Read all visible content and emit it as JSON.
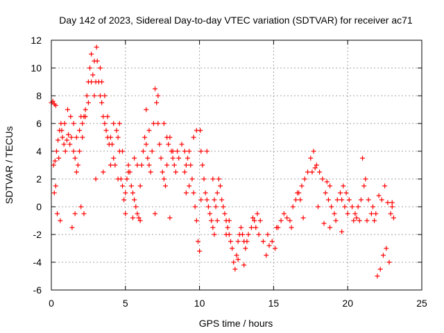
{
  "chart_data": {
    "type": "scatter",
    "title": "Day 142 of 2023, Sidereal Day-to-day VTEC variation (SDTVAR) for receiver ac71",
    "xlabel": "GPS time / hours",
    "ylabel": "SDTVAR / TECUs",
    "xlim": [
      0,
      25
    ],
    "ylim": [
      -6,
      12
    ],
    "xticks": [
      0,
      5,
      10,
      15,
      20,
      25
    ],
    "yticks": [
      -6,
      -4,
      -2,
      0,
      2,
      4,
      6,
      8,
      10,
      12
    ],
    "grid": true,
    "marker": "+",
    "series": [
      {
        "name": "SDTVAR",
        "color": "#ff0000",
        "points": [
          [
            0.0,
            7.5
          ],
          [
            0.1,
            7.6
          ],
          [
            0.2,
            7.4
          ],
          [
            0.3,
            7.3
          ],
          [
            0.15,
            3.0
          ],
          [
            0.25,
            3.3
          ],
          [
            0.35,
            4.0
          ],
          [
            0.45,
            4.8
          ],
          [
            0.55,
            5.5
          ],
          [
            0.65,
            6.0
          ],
          [
            0.75,
            5.0
          ],
          [
            0.85,
            4.5
          ],
          [
            0.95,
            4.0
          ],
          [
            1.05,
            4.8
          ],
          [
            1.15,
            5.2
          ],
          [
            1.25,
            4.5
          ],
          [
            1.35,
            5.0
          ],
          [
            1.5,
            4.0
          ],
          [
            1.6,
            3.5
          ],
          [
            1.7,
            2.5
          ],
          [
            1.8,
            3.0
          ],
          [
            1.9,
            5.5
          ],
          [
            2.0,
            6.5
          ],
          [
            2.1,
            6.0
          ],
          [
            2.2,
            6.5
          ],
          [
            2.3,
            7.0
          ],
          [
            2.4,
            8.0
          ],
          [
            2.5,
            9.0
          ],
          [
            2.6,
            10.0
          ],
          [
            2.7,
            11.0
          ],
          [
            2.8,
            9.5
          ],
          [
            2.9,
            8.0
          ],
          [
            3.0,
            9.0
          ],
          [
            3.05,
            11.5
          ],
          [
            3.1,
            10.5
          ],
          [
            3.2,
            9.0
          ],
          [
            3.3,
            8.0
          ],
          [
            3.4,
            7.5
          ],
          [
            3.5,
            6.5
          ],
          [
            3.6,
            6.0
          ],
          [
            3.7,
            5.5
          ],
          [
            3.8,
            5.0
          ],
          [
            3.9,
            4.5
          ],
          [
            4.0,
            5.0
          ],
          [
            4.1,
            4.5
          ],
          [
            4.2,
            3.5
          ],
          [
            4.3,
            3.0
          ],
          [
            4.4,
            5.5
          ],
          [
            4.5,
            5.0
          ],
          [
            4.6,
            4.0
          ],
          [
            4.7,
            2.0
          ],
          [
            4.8,
            1.5
          ],
          [
            4.9,
            0.5
          ],
          [
            5.0,
            1.0
          ],
          [
            5.1,
            2.0
          ],
          [
            5.2,
            3.0
          ],
          [
            5.3,
            2.5
          ],
          [
            5.4,
            1.5
          ],
          [
            5.5,
            1.0
          ],
          [
            5.6,
            0.5
          ],
          [
            5.7,
            0.0
          ],
          [
            5.8,
            -0.5
          ],
          [
            5.9,
            -0.8
          ],
          [
            6.0,
            1.5
          ],
          [
            6.1,
            3.0
          ],
          [
            6.2,
            4.0
          ],
          [
            6.3,
            5.0
          ],
          [
            6.4,
            4.5
          ],
          [
            6.5,
            3.5
          ],
          [
            6.6,
            3.0
          ],
          [
            6.7,
            2.5
          ],
          [
            6.8,
            4.0
          ],
          [
            6.9,
            6.0
          ],
          [
            7.0,
            8.5
          ],
          [
            7.1,
            7.5
          ],
          [
            7.2,
            6.0
          ],
          [
            7.3,
            4.5
          ],
          [
            7.4,
            3.5
          ],
          [
            7.5,
            2.5
          ],
          [
            7.6,
            2.0
          ],
          [
            7.7,
            1.5
          ],
          [
            7.8,
            3.0
          ],
          [
            7.9,
            4.5
          ],
          [
            8.0,
            5.0
          ],
          [
            8.1,
            4.0
          ],
          [
            8.2,
            3.5
          ],
          [
            8.3,
            3.0
          ],
          [
            8.4,
            2.5
          ],
          [
            8.5,
            4.0
          ],
          [
            8.6,
            3.5
          ],
          [
            9.0,
            2.5
          ],
          [
            9.1,
            3.0
          ],
          [
            9.2,
            3.5
          ],
          [
            9.3,
            4.0
          ],
          [
            9.4,
            3.0
          ],
          [
            9.5,
            2.0
          ],
          [
            9.6,
            1.0
          ],
          [
            9.7,
            0.0
          ],
          [
            9.8,
            -1.0
          ],
          [
            9.9,
            -2.5
          ],
          [
            10.0,
            -3.2
          ],
          [
            10.05,
            5.5
          ],
          [
            10.1,
            4.0
          ],
          [
            10.2,
            3.0
          ],
          [
            10.3,
            2.0
          ],
          [
            10.4,
            1.0
          ],
          [
            10.5,
            0.5
          ],
          [
            10.6,
            0.0
          ],
          [
            10.7,
            -0.5
          ],
          [
            10.8,
            -1.0
          ],
          [
            10.9,
            -1.5
          ],
          [
            11.0,
            -2.0
          ],
          [
            11.1,
            0.0
          ],
          [
            11.2,
            1.0
          ],
          [
            11.3,
            2.0
          ],
          [
            11.4,
            1.5
          ],
          [
            11.5,
            0.5
          ],
          [
            11.6,
            0.0
          ],
          [
            11.7,
            -0.5
          ],
          [
            11.8,
            -1.0
          ],
          [
            11.9,
            -1.5
          ],
          [
            12.0,
            -2.0
          ],
          [
            12.1,
            -2.5
          ],
          [
            12.2,
            -3.0
          ],
          [
            12.3,
            -4.0
          ],
          [
            12.4,
            -4.5
          ],
          [
            12.5,
            -3.5
          ],
          [
            12.6,
            -2.5
          ],
          [
            12.7,
            -2.0
          ],
          [
            12.8,
            -1.5
          ],
          [
            12.9,
            -2.0
          ],
          [
            13.0,
            -2.5
          ],
          [
            13.1,
            -3.0
          ],
          [
            13.2,
            -2.5
          ],
          [
            13.3,
            -2.0
          ],
          [
            13.5,
            -1.5
          ],
          [
            13.7,
            -1.0
          ],
          [
            13.9,
            -0.5
          ],
          [
            14.1,
            -1.0
          ],
          [
            14.3,
            -2.5
          ],
          [
            14.5,
            -3.5
          ],
          [
            14.7,
            -2.8
          ],
          [
            14.9,
            -2.5
          ],
          [
            15.1,
            -3.0
          ],
          [
            15.3,
            -1.5
          ],
          [
            15.5,
            -1.0
          ],
          [
            15.7,
            -0.5
          ],
          [
            15.9,
            -0.8
          ],
          [
            16.1,
            -1.0
          ],
          [
            16.3,
            0.0
          ],
          [
            16.5,
            0.5
          ],
          [
            16.7,
            1.0
          ],
          [
            16.9,
            1.5
          ],
          [
            17.1,
            2.0
          ],
          [
            17.3,
            2.5
          ],
          [
            17.5,
            3.5
          ],
          [
            17.7,
            4.0
          ],
          [
            17.9,
            3.0
          ],
          [
            18.1,
            2.5
          ],
          [
            18.3,
            2.0
          ],
          [
            18.5,
            1.0
          ],
          [
            18.7,
            0.5
          ],
          [
            18.9,
            0.0
          ],
          [
            19.1,
            -0.5
          ],
          [
            19.3,
            0.5
          ],
          [
            19.5,
            1.0
          ],
          [
            19.7,
            1.5
          ],
          [
            19.9,
            1.0
          ],
          [
            20.1,
            0.5
          ],
          [
            20.3,
            0.0
          ],
          [
            20.5,
            -0.5
          ],
          [
            20.7,
            0.0
          ],
          [
            20.9,
            0.5
          ],
          [
            21.0,
            3.5
          ],
          [
            21.2,
            2.0
          ],
          [
            21.4,
            0.5
          ],
          [
            21.6,
            -0.5
          ],
          [
            21.8,
            -1.0
          ],
          [
            22.0,
            -5.0
          ],
          [
            22.2,
            -4.5
          ],
          [
            22.4,
            -3.5
          ],
          [
            22.6,
            -3.0
          ],
          [
            22.8,
            -4.0
          ],
          [
            22.9,
            -0.5
          ],
          [
            23.0,
            0.0
          ],
          [
            23.1,
            -0.8
          ],
          [
            22.5,
            1.5
          ],
          [
            22.3,
            0.5
          ],
          [
            21.9,
            -0.5
          ],
          [
            21.7,
            0.0
          ],
          [
            20.8,
            -1.0
          ],
          [
            20.6,
            -0.8
          ],
          [
            19.8,
            0.0
          ],
          [
            19.6,
            0.5
          ],
          [
            18.8,
            1.5
          ],
          [
            18.6,
            1.8
          ],
          [
            17.8,
            2.8
          ],
          [
            17.6,
            2.5
          ],
          [
            16.8,
            0.5
          ],
          [
            16.6,
            1.0
          ],
          [
            13.6,
            -0.8
          ],
          [
            13.8,
            -1.5
          ],
          [
            12.0,
            -1.0
          ],
          [
            11.8,
            -2.0
          ],
          [
            11.0,
            0.5
          ],
          [
            10.9,
            2.0
          ],
          [
            10.5,
            4.0
          ],
          [
            9.8,
            5.5
          ],
          [
            9.6,
            5.0
          ],
          [
            9.0,
            4.0
          ],
          [
            8.8,
            4.5
          ],
          [
            8.2,
            4.0
          ],
          [
            7.8,
            5.0
          ],
          [
            7.6,
            6.0
          ],
          [
            7.2,
            8.0
          ],
          [
            6.6,
            5.5
          ],
          [
            6.4,
            7.0
          ],
          [
            5.8,
            3.0
          ],
          [
            5.6,
            3.5
          ],
          [
            5.2,
            2.5
          ],
          [
            4.8,
            4.0
          ],
          [
            4.6,
            6.0
          ],
          [
            4.2,
            6.0
          ],
          [
            3.8,
            6.5
          ],
          [
            3.6,
            8.0
          ],
          [
            3.4,
            9.0
          ],
          [
            3.3,
            10.0
          ],
          [
            2.9,
            10.5
          ],
          [
            2.7,
            9.0
          ],
          [
            2.5,
            7.5
          ],
          [
            2.3,
            6.5
          ],
          [
            2.1,
            5.0
          ],
          [
            1.9,
            4.0
          ],
          [
            1.7,
            5.0
          ],
          [
            1.5,
            6.0
          ],
          [
            1.3,
            6.5
          ],
          [
            1.1,
            7.0
          ],
          [
            0.9,
            6.0
          ],
          [
            0.7,
            5.5
          ],
          [
            0.5,
            3.5
          ],
          [
            0.3,
            1.5
          ],
          [
            0.2,
            1.0
          ],
          [
            0.4,
            -0.5
          ],
          [
            0.6,
            -1.0
          ],
          [
            1.4,
            -1.5
          ],
          [
            1.6,
            -0.5
          ],
          [
            2.2,
            -0.5
          ],
          [
            2.0,
            0.0
          ],
          [
            3.0,
            2.0
          ],
          [
            3.5,
            2.5
          ],
          [
            4.0,
            3.0
          ],
          [
            4.5,
            2.0
          ],
          [
            5.0,
            -0.5
          ],
          [
            5.5,
            -0.8
          ],
          [
            6.0,
            -1.0
          ],
          [
            7.0,
            -0.5
          ],
          [
            8.0,
            -0.8
          ],
          [
            9.1,
            1.0
          ],
          [
            9.3,
            1.5
          ],
          [
            10.1,
            0.5
          ],
          [
            11.2,
            -1.0
          ],
          [
            12.6,
            -3.8
          ],
          [
            13.0,
            -4.2
          ],
          [
            14.0,
            -2.0
          ],
          [
            14.6,
            -2.0
          ],
          [
            15.2,
            -1.5
          ],
          [
            16.2,
            -1.5
          ],
          [
            17.0,
            -0.8
          ],
          [
            18.0,
            0.0
          ],
          [
            18.4,
            -1.2
          ],
          [
            18.8,
            -1.5
          ],
          [
            19.2,
            -1.0
          ],
          [
            19.6,
            -1.8
          ],
          [
            20.0,
            -0.5
          ],
          [
            20.4,
            -1.0
          ],
          [
            21.1,
            1.5
          ],
          [
            21.3,
            -1.0
          ],
          [
            22.1,
            0.8
          ],
          [
            22.7,
            0.3
          ],
          [
            23.0,
            0.3
          ]
        ]
      }
    ]
  }
}
